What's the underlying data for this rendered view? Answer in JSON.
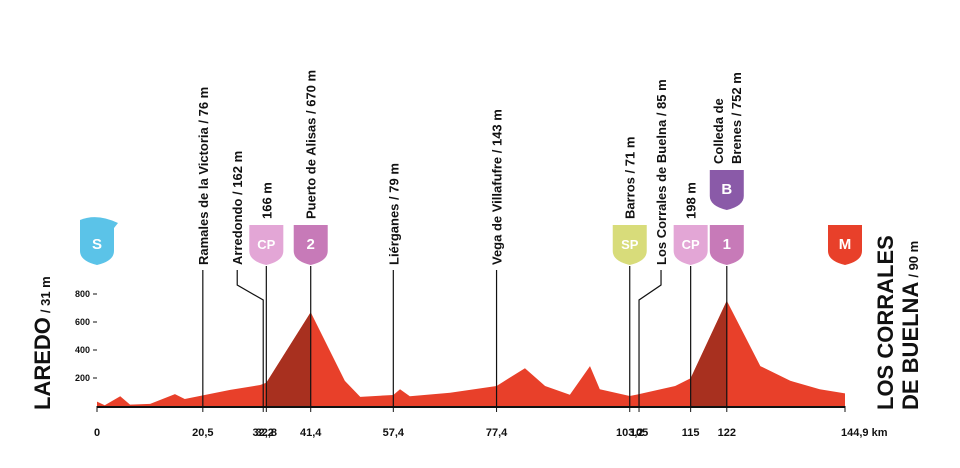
{
  "chart_data": {
    "type": "elevation_profile",
    "color": "#e8402a",
    "climb_color": "#a8301f",
    "x": [
      0,
      1.5,
      4.5,
      6.4,
      10.3,
      15.1,
      17,
      20.5,
      25.8,
      31.6,
      32.8,
      41.4,
      48,
      51,
      57.4,
      58.7,
      60.6,
      68.4,
      77.4,
      82.9,
      86.8,
      91.6,
      95.5,
      97.4,
      103.2,
      105,
      112,
      115,
      122,
      128.5,
      134.3,
      140,
      144.9
    ],
    "values": [
      31,
      5,
      70,
      10,
      15,
      85,
      50,
      76,
      115,
      150,
      166,
      670,
      180,
      65,
      79,
      120,
      70,
      95,
      143,
      270,
      143,
      80,
      285,
      120,
      71,
      85,
      143,
      198,
      752,
      285,
      180,
      120,
      90
    ],
    "xlim": [
      0,
      144.9
    ],
    "ylim": [
      0,
      800
    ],
    "yticks": [
      200,
      400,
      600,
      800
    ],
    "xticks": [
      0,
      {
        "value": 20.5,
        "label": "20,5"
      },
      {
        "value": 32.2,
        "label": "32,2"
      },
      {
        "value": 32.8,
        "label": "32,8"
      },
      {
        "value": 41.4,
        "label": "41,4"
      },
      {
        "value": 57.4,
        "label": "57,4"
      },
      {
        "value": 77.4,
        "label": "77,4"
      },
      {
        "value": 103.2,
        "label": "103,2"
      },
      105,
      115,
      122,
      {
        "value": 144.9,
        "label": "144,9 km"
      }
    ],
    "start": {
      "name": "LAREDO",
      "elevation": "/ 31 m",
      "x": 0,
      "badges": [
        {
          "text": "S",
          "color": "#5bc3e8"
        }
      ]
    },
    "finish": {
      "name": [
        "LOS CORRALES",
        "DE BUELNA"
      ],
      "elevation": "/ 90 m",
      "x": 144.9,
      "badges": [
        {
          "text": "M",
          "color": "#e8402a"
        }
      ]
    },
    "waypoints": [
      {
        "x": 20.5,
        "label": [
          "Ramales de la Victoria / 76 m"
        ]
      },
      {
        "x": 32.2,
        "label": [
          "Arredondo / 162 m"
        ]
      },
      {
        "x": 32.8,
        "label": [
          "166 m"
        ],
        "badges": [
          {
            "text": "CP",
            "color": "#e3a6d6"
          }
        ]
      },
      {
        "x": 41.4,
        "label": [
          "Puerto de Alisas / 670 m"
        ],
        "badges": [
          {
            "text": "2",
            "color": "#c77ab8"
          }
        ],
        "climb": true
      },
      {
        "x": 57.4,
        "label": [
          "Liérganes / 79 m"
        ]
      },
      {
        "x": 77.4,
        "label": [
          "Vega de Villafufre / 143 m"
        ]
      },
      {
        "x": 103.2,
        "label": [
          "Barros / 71 m"
        ],
        "badges": [
          {
            "text": "SP",
            "color": "#d8dc7a"
          }
        ]
      },
      {
        "x": 105,
        "label": [
          "Los Corrales de Buelna / 85 m"
        ]
      },
      {
        "x": 115,
        "label": [
          "198 m"
        ],
        "badges": [
          {
            "text": "CP",
            "color": "#e3a6d6"
          }
        ]
      },
      {
        "x": 122,
        "label": [
          "Colleda de",
          "Brenes / 752 m"
        ],
        "badges": [
          {
            "text": "1",
            "color": "#c77ab8"
          },
          {
            "text": "B",
            "color": "#8a5aa8"
          }
        ],
        "climb": true
      }
    ]
  }
}
